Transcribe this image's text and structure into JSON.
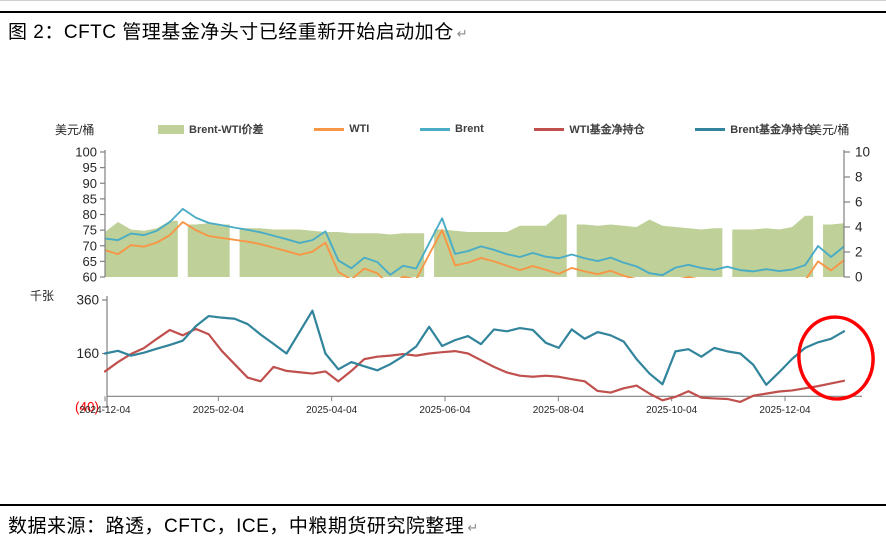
{
  "page": {
    "title": "图 2：CFTC 管理基金净头寸已经重新开始启动加仓",
    "title_mark": "↵",
    "source": "数据来源：路透，CFTC，ICE，中粮期货研究院整理",
    "source_mark": "↵"
  },
  "axis_units": {
    "top_left": "美元/桶",
    "top_right": "美元/桶",
    "bottom_left": "千张"
  },
  "legend": {
    "items": [
      {
        "label": "Brent-WTI价差",
        "marker": "area",
        "color": "#bfd199"
      },
      {
        "label": "WTI",
        "marker": "line",
        "color": "#F79646"
      },
      {
        "label": "Brent",
        "marker": "line",
        "color": "#4BACC6"
      },
      {
        "label": "WTI基金净持仓",
        "marker": "line",
        "color": "#C0504D"
      },
      {
        "label": "Brent基金净持仓",
        "marker": "line",
        "color": "#31849B"
      }
    ]
  },
  "chart_data": [
    {
      "type": "area",
      "panel": "price",
      "x": {
        "start": "2024-12-04",
        "freq": "weekly",
        "points": 58
      },
      "left_axis": {
        "unit": "美元/桶",
        "min": 60,
        "max": 100,
        "ticks": [
          100,
          95,
          90,
          85,
          80,
          75,
          70,
          65,
          60
        ]
      },
      "right_axis": {
        "unit": "美元/桶",
        "min": 0,
        "max": 10,
        "ticks": [
          10,
          8,
          6,
          4,
          2,
          0
        ]
      },
      "series": [
        {
          "name": "Brent-WTI价差",
          "slug": "brent-wti-spread-area",
          "kind": "area",
          "axis": "right",
          "color": "#bfd199",
          "values": [
            3.6,
            4.4,
            3.8,
            3.7,
            3.9,
            4.5,
            null,
            4.2,
            4.3,
            4.2,
            null,
            3.9,
            3.9,
            3.8,
            3.8,
            3.8,
            3.7,
            3.6,
            3.6,
            3.5,
            3.5,
            3.5,
            3.4,
            3.5,
            3.5,
            null,
            3.8,
            3.7,
            3.6,
            3.6,
            3.6,
            3.6,
            4.1,
            4.1,
            4.1,
            5.0,
            null,
            4.2,
            4.1,
            4.2,
            4.1,
            4.0,
            4.6,
            4.1,
            4.0,
            3.9,
            3.8,
            3.9,
            null,
            3.8,
            3.8,
            3.9,
            3.8,
            4.0,
            4.9,
            null,
            4.2,
            4.3
          ]
        },
        {
          "name": "WTI",
          "slug": "wti-line",
          "kind": "line",
          "axis": "left",
          "color": "#F79646",
          "values": [
            68.6,
            67.3,
            70.2,
            69.7,
            71.0,
            73.4,
            77.6,
            75.0,
            73.1,
            72.5,
            71.9,
            71.3,
            70.5,
            69.4,
            68.3,
            67.1,
            68.1,
            71.0,
            61.6,
            59.2,
            62.7,
            61.2,
            57.2,
            60.1,
            59.2,
            67.2,
            75.0,
            63.7,
            64.6,
            66.1,
            65.0,
            63.6,
            62.2,
            63.5,
            62.3,
            61.0,
            62.9,
            61.8,
            60.9,
            62.0,
            60.4,
            59.3,
            57.1,
            56.7,
            59.0,
            60.0,
            59.0,
            58.3,
            59.4,
            58.3,
            57.9,
            58.6,
            58.1,
            58.4,
            58.9,
            65.0,
            62.1,
            65.4
          ]
        },
        {
          "name": "Brent",
          "slug": "brent-line",
          "kind": "line",
          "axis": "left",
          "color": "#4BACC6",
          "values": [
            72.3,
            71.8,
            73.9,
            73.4,
            74.8,
            77.6,
            81.8,
            79.0,
            77.3,
            76.6,
            75.8,
            75.1,
            74.3,
            73.2,
            72.1,
            70.9,
            71.8,
            74.6,
            65.3,
            62.8,
            66.2,
            64.8,
            60.7,
            63.6,
            62.7,
            70.8,
            78.8,
            67.4,
            68.3,
            69.8,
            68.7,
            67.3,
            66.4,
            67.7,
            66.5,
            66.0,
            67.2,
            66.0,
            65.1,
            66.2,
            64.6,
            63.4,
            61.2,
            60.6,
            63.0,
            63.9,
            62.9,
            62.3,
            63.3,
            62.2,
            61.8,
            62.5,
            61.9,
            62.4,
            63.8,
            69.9,
            66.4,
            69.8
          ]
        }
      ]
    },
    {
      "type": "line",
      "panel": "positions",
      "x": {
        "start": "2024-12-04",
        "freq": "weekly",
        "points": 58
      },
      "x_tick_labels": [
        "2024-12-04",
        "2025-02-04",
        "2025-04-04",
        "2025-06-04",
        "2025-08-04",
        "2025-10-04",
        "2025-12-04"
      ],
      "left_axis": {
        "unit": "千张",
        "min": -40,
        "max": 360,
        "ticks": [
          {
            "label": "360",
            "value": 360,
            "color": "#262626"
          },
          {
            "label": "160",
            "value": 160,
            "color": "#262626"
          },
          {
            "label": "(40)",
            "value": -40,
            "color": "#FF0000"
          }
        ]
      },
      "series": [
        {
          "name": "WTI基金净持仓",
          "slug": "wti-net-position-line",
          "color": "#C0504D",
          "values": [
            93,
            128,
            158,
            180,
            215,
            248,
            228,
            252,
            232,
            170,
            120,
            70,
            56,
            110,
            95,
            90,
            85,
            93,
            56,
            95,
            139,
            148,
            152,
            158,
            152,
            160,
            165,
            169,
            160,
            135,
            110,
            89,
            77,
            73,
            77,
            73,
            64,
            56,
            20,
            14,
            30,
            40,
            10,
            -15,
            -2,
            19,
            -5,
            -8,
            -10,
            -21,
            2,
            10,
            18,
            22,
            30,
            38,
            48,
            58
          ]
        },
        {
          "name": "Brent基金净持仓",
          "slug": "brent-net-position-line",
          "color": "#31849B",
          "values": [
            160,
            170,
            152,
            163,
            178,
            192,
            208,
            262,
            300,
            294,
            290,
            270,
            231,
            196,
            160,
            240,
            320,
            160,
            101,
            128,
            112,
            97,
            120,
            150,
            186,
            260,
            188,
            210,
            225,
            195,
            250,
            243,
            255,
            248,
            200,
            181,
            250,
            215,
            240,
            228,
            205,
            139,
            85,
            45,
            168,
            176,
            148,
            181,
            168,
            160,
            118,
            43,
            90,
            140,
            181,
            202,
            215,
            243
          ]
        }
      ],
      "annotation": {
        "shape": "ellipse",
        "color": "#FF0000"
      }
    }
  ]
}
